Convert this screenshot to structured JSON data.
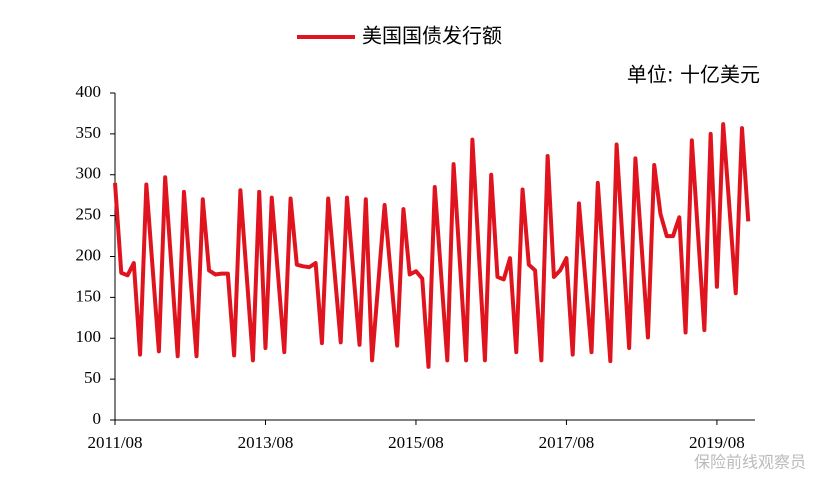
{
  "chart_data": {
    "type": "line",
    "unit_label": "单位: 十亿美元",
    "watermark": "保险前线观察员",
    "categories": [
      "2011/08",
      null,
      null,
      null,
      null,
      null,
      null,
      null,
      null,
      null,
      null,
      null,
      null,
      null,
      null,
      null,
      null,
      null,
      null,
      null,
      null,
      null,
      null,
      null,
      "2013/08",
      null,
      null,
      null,
      null,
      null,
      null,
      null,
      null,
      null,
      null,
      null,
      null,
      null,
      null,
      null,
      null,
      null,
      null,
      null,
      null,
      null,
      null,
      null,
      "2015/08",
      null,
      null,
      null,
      null,
      null,
      null,
      null,
      null,
      null,
      null,
      null,
      null,
      null,
      null,
      null,
      null,
      null,
      null,
      null,
      null,
      null,
      null,
      null,
      "2017/08",
      null,
      null,
      null,
      null,
      null,
      null,
      null,
      null,
      null,
      null,
      null,
      null,
      null,
      null,
      null,
      null,
      null,
      null,
      null,
      null,
      null,
      null,
      null,
      "2019/08",
      null,
      null,
      null,
      null,
      null
    ],
    "series": [
      {
        "name": "美国国债发行额",
        "color": "#e0141e",
        "values": [
          290,
          180,
          177,
          192,
          80,
          288,
          186,
          84,
          297,
          188,
          78,
          279,
          178,
          78,
          270,
          183,
          178,
          179,
          179,
          79,
          281,
          177,
          73,
          279,
          88,
          272,
          178,
          83,
          271,
          190,
          188,
          187,
          192,
          94,
          271,
          183,
          95,
          272,
          182,
          92,
          270,
          73,
          168,
          263,
          177,
          91,
          258,
          178,
          182,
          173,
          65,
          285,
          179,
          73,
          313,
          193,
          73,
          343,
          208,
          73,
          300,
          175,
          172,
          198,
          83,
          282,
          190,
          183,
          73,
          323,
          175,
          183,
          198,
          80,
          265,
          174,
          83,
          290,
          181,
          72,
          337,
          213,
          88,
          320,
          211,
          101,
          312,
          252,
          225,
          225,
          248,
          107,
          342,
          226,
          110,
          350,
          163,
          362,
          259,
          155,
          357,
          243
        ]
      }
    ],
    "ylim": [
      0,
      400
    ],
    "yticks": [
      0,
      50,
      100,
      150,
      200,
      250,
      300,
      350,
      400
    ],
    "grid": false
  }
}
